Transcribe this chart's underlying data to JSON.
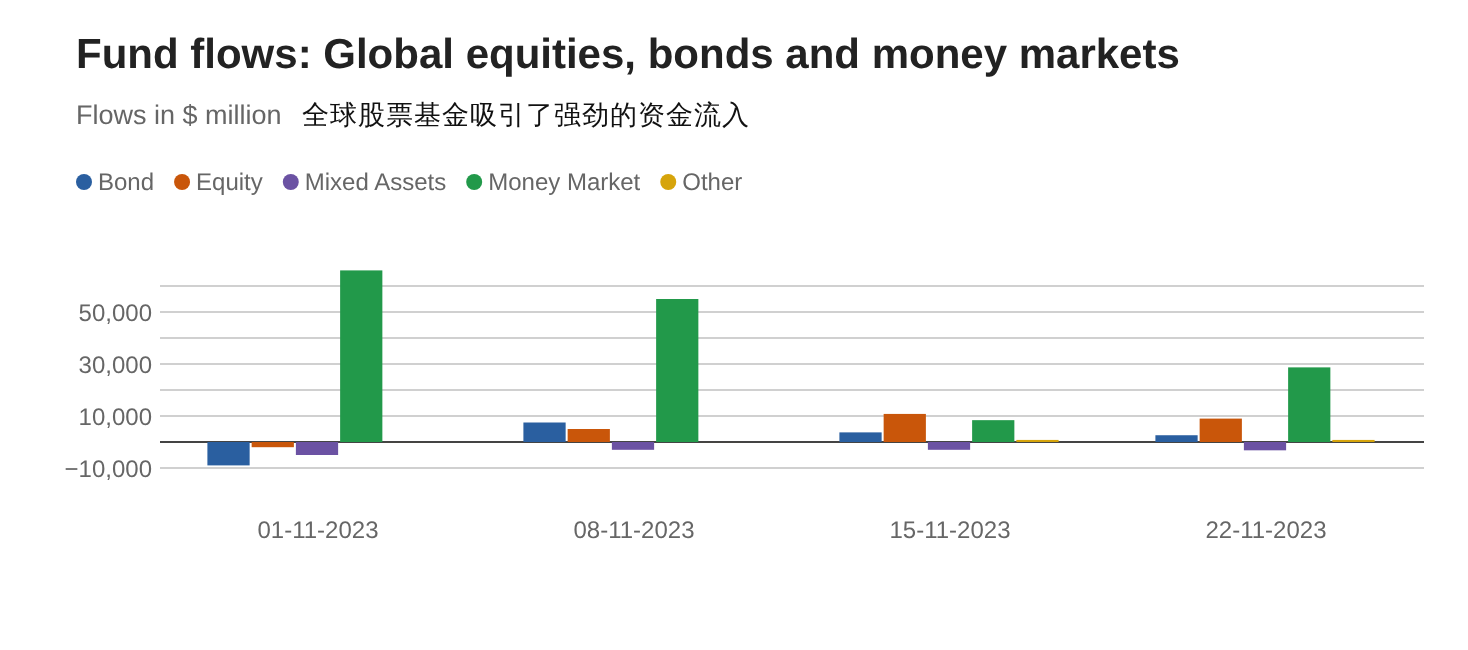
{
  "chart_data": {
    "type": "bar",
    "title": "Fund flows: Global equities, bonds and money markets",
    "subtitle": "Flows in $ million",
    "annotations": [
      "全球股票基金吸引了强劲的资金流入"
    ],
    "categories": [
      "01-11-2023",
      "08-11-2023",
      "15-11-2023",
      "22-11-2023"
    ],
    "series": [
      {
        "name": "Bond",
        "color": "#2a5fa0",
        "values": [
          -9000,
          7500,
          3700,
          2600
        ]
      },
      {
        "name": "Equity",
        "color": "#c9560a",
        "values": [
          -2000,
          5000,
          10800,
          9000
        ]
      },
      {
        "name": "Mixed Assets",
        "color": "#6b52a3",
        "values": [
          -5000,
          -3000,
          -3000,
          -3200
        ]
      },
      {
        "name": "Money Market",
        "color": "#22994a",
        "values": [
          66000,
          55000,
          8400,
          28700
        ]
      },
      {
        "name": "Other",
        "color": "#d6a40b",
        "values": [
          0,
          0,
          800,
          800
        ]
      }
    ],
    "ylim": [
      -10000,
      68000
    ],
    "yticks": [
      {
        "value": -10000,
        "label": "−10,000"
      },
      {
        "value": 0,
        "label": null
      },
      {
        "value": 10000,
        "label": "10,000"
      },
      {
        "value": 20000,
        "label": null
      },
      {
        "value": 30000,
        "label": "30,000"
      },
      {
        "value": 40000,
        "label": null
      },
      {
        "value": 50000,
        "label": "50,000"
      },
      {
        "value": 60000,
        "label": null
      }
    ],
    "grid": "y",
    "legend": "top left"
  }
}
